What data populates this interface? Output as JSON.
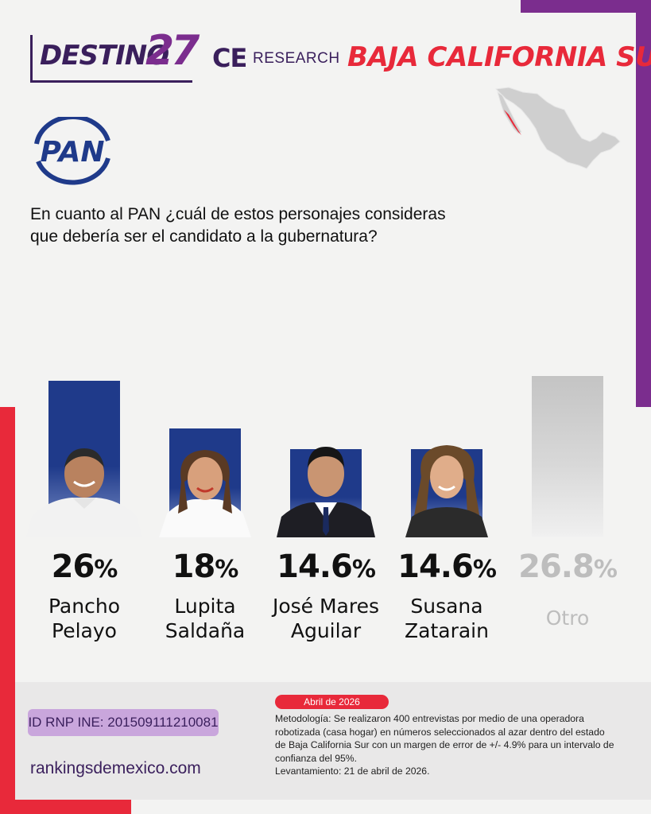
{
  "header": {
    "brand_word": "DESTINO",
    "brand_number": "27",
    "partner_ce": "CE",
    "partner_research": "RESEARCH",
    "region": "BAJA CALIFORNIA SUR"
  },
  "party_logo_text": "PAN",
  "question": "En cuanto al PAN ¿cuál de estos personajes consideras que debería ser el candidato a la gubernatura?",
  "colors": {
    "purple": "#7b2d8e",
    "dark_purple": "#3a1f5c",
    "red": "#e8293a",
    "bar_blue": "#1f3a8a",
    "bar_gray": "#c4c4c4"
  },
  "chart_data": {
    "type": "bar",
    "title": "",
    "xlabel": "",
    "ylabel": "",
    "unit": "%",
    "categories": [
      "Pancho Pelayo",
      "Lupita Saldaña",
      "José Mares Aguilar",
      "Susana Zatarain",
      "Otro"
    ],
    "values": [
      26,
      18,
      14.6,
      14.6,
      26.8
    ],
    "value_labels": [
      "26",
      "18",
      "14.6",
      "14.6",
      "26.8"
    ],
    "name_lines": [
      [
        "Pancho",
        "Pelayo"
      ],
      [
        "Lupita",
        "Saldaña"
      ],
      [
        "José Mares",
        "Aguilar"
      ],
      [
        "Susana",
        "Zatarain"
      ],
      [
        "Otro"
      ]
    ],
    "bar_colors": [
      "#1f3a8a",
      "#1f3a8a",
      "#1f3a8a",
      "#1f3a8a",
      "#c4c4c4"
    ]
  },
  "footer": {
    "rnp": "ID RNP INE: 201509111210081",
    "website": "rankingsdemexico.com",
    "date": "Abril de 2026",
    "methodology": "Metodología: Se realizaron 400 entrevistas por medio de una operadora robotizada (casa hogar) en números seleccionados al azar dentro del estado de Baja California Sur con un margen de error de +/- 4.9% para un intervalo de confianza del 95%.",
    "fieldwork": "Levantamiento: 21 de abril de 2026."
  }
}
